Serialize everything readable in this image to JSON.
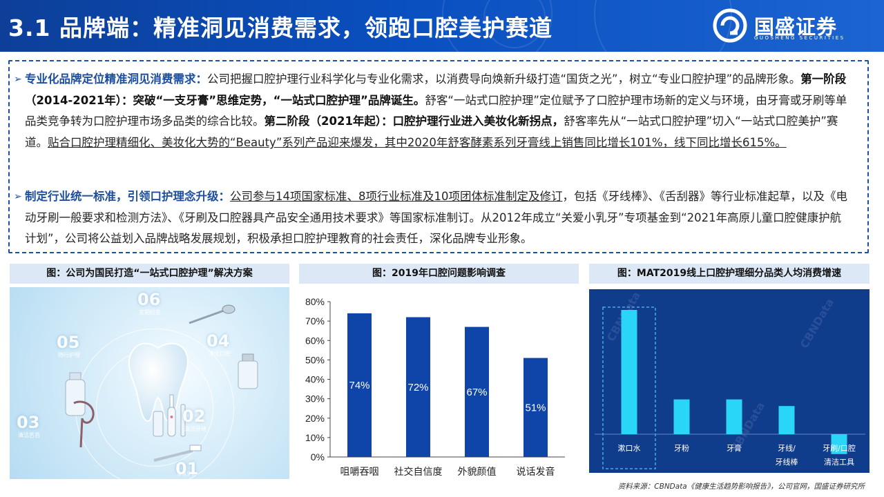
{
  "header": {
    "title": "3.1 品牌端：精准洞见消费需求，领跑口腔美护赛道",
    "logo_text": "国盛证券",
    "logo_subtitle": "GUOSHENG SECURITIES"
  },
  "bullet_symbol": "➢",
  "text_box": {
    "p1": {
      "lead": "专业化品牌定位精准洞见消费需求：",
      "t1": "公司把握口腔护理行业科学化与专业化需求，以消费导向焕新升级打造“国货之光”，树立“专业口腔护理”的品牌形象。",
      "b1": "第一阶段（2014-2021年）：突破“一支牙膏”思维定势，“一站式口腔护理”品牌诞生。",
      "t2": "舒客“一站式口腔护理”定位赋予了口腔护理市场新的定义与环境，由牙膏或牙刷等单品类竞争转为口腔护理市场多品类的综合比较。",
      "b2": "第二阶段（2021年起）：口腔护理行业进入美妆化新拐点，",
      "t3": "舒客率先从“一站式口腔护理”切入“一站式口腔美护”赛道。",
      "u1": "贴合口腔护理精细化、美妆化大势的“Beauty”系列产品迎来爆发，其中2020年舒客酵素系列牙膏线上销售同比增长101%，线下同比增长615%。"
    },
    "p2": {
      "lead": "制定行业统一标准，引领口护理念升级：",
      "u1": "公司参与14项国家标准、8项行业标准及10项团体标准制定及修订",
      "t1": "，包括《牙线棒》、《舌刮器》等行业标准起草，以及《电动牙刷一般要求和检测方法》、《牙刷及口腔器具产品安全通用技术要求》等国家标准制订。从2012年成立“关爱小乳牙”专项基金到“2021年高原儿童口腔健康护航计划”，公司将公益划入品牌战略发展规划，积极承担口腔护理教育的社会责任，深化品牌专业形象。"
    }
  },
  "figures": {
    "fig1_title": "图：公司为国民打造“一站式口腔护理”解决方案",
    "fig2_title": "图：2019年口腔问题影响调查",
    "fig3_title": "图：MAT2019线上口腔护理细分品类人均消费增速"
  },
  "figure1": {
    "stages": [
      {
        "num": "06",
        "label": "定期检查"
      },
      {
        "num": "05",
        "label": "随行护理"
      },
      {
        "num": "04",
        "label": "净化口腔"
      },
      {
        "num": "03",
        "label": "清洁舌苔"
      },
      {
        "num": "02",
        "label": "清洁牙缝"
      },
      {
        "num": "01",
        "label": "清洁牙齿"
      }
    ]
  },
  "chart_data": [
    {
      "type": "bar",
      "title": "图：2019年口腔问题影响调查",
      "categories": [
        "咀嚼吞咽",
        "社交自信度",
        "外貌颜值",
        "说话发音"
      ],
      "values": [
        74,
        72,
        67,
        51
      ],
      "data_labels": [
        "74%",
        "72%",
        "67%",
        "51%"
      ],
      "y_ticks": [
        "0%",
        "10%",
        "20%",
        "30%",
        "40%",
        "50%",
        "60%",
        "70%",
        "80%"
      ],
      "ylim": [
        0,
        80
      ],
      "bar_color": "#0f45a8",
      "grid": false
    },
    {
      "type": "bar",
      "title": "图：MAT2019线上口腔护理细分品类人均消费增速",
      "categories": [
        "漱口水",
        "牙粉",
        "牙膏",
        "牙线/牙线棒",
        "牙刷/口腔清洁工具"
      ],
      "category_lines": [
        [
          "漱口水"
        ],
        [
          "牙粉"
        ],
        [
          "牙膏"
        ],
        [
          "牙线/",
          "牙线棒"
        ],
        [
          "牙刷/口腔",
          "清洁工具"
        ]
      ],
      "values": [
        0.75,
        0.21,
        0.21,
        0.17,
        -0.12
      ],
      "ylim": [
        -0.2,
        0.8
      ],
      "bar_color": "#29d6f7",
      "background": "#103c8c",
      "highlight_category": "漱口水",
      "grid": false
    }
  ],
  "source": "资料来源：CBNData《健康生活趋势影响报告》，公司官网，国盛证券研究所"
}
